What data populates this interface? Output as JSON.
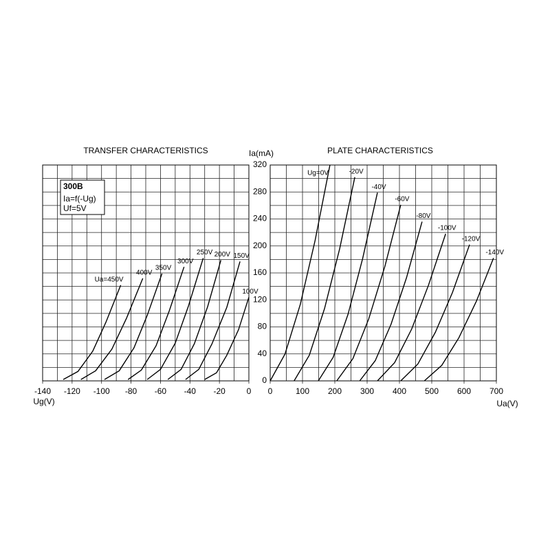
{
  "chart_data": [
    {
      "type": "line",
      "title": "TRANSFER CHARACTERISTICS",
      "x_label": "Ug(V)",
      "annotations": [
        "300B",
        "Ia=f(-Ug)",
        "Uf=5V"
      ],
      "xlim": [
        -140,
        0
      ],
      "ylim": [
        0,
        320
      ],
      "xticks": [
        -140,
        -120,
        -100,
        -80,
        -60,
        -40,
        -20,
        0
      ],
      "xgrid": [
        -140,
        -130,
        -120,
        -110,
        -100,
        -90,
        -80,
        -70,
        -60,
        -50,
        -40,
        -30,
        -20,
        -10,
        0
      ],
      "ygrid": [
        0,
        20,
        40,
        60,
        80,
        100,
        120,
        140,
        160,
        180,
        200,
        220,
        240,
        260,
        280,
        300,
        320
      ],
      "grid": true,
      "series": [
        {
          "name": "Ua=450V",
          "color": "#000000",
          "x": [
            -126,
            -116,
            -106,
            -97,
            -87
          ],
          "values": [
            2,
            14,
            44,
            87,
            142
          ]
        },
        {
          "name": "400V",
          "color": "#000000",
          "x": [
            -114,
            -104,
            -93,
            -83,
            -72
          ],
          "values": [
            2,
            15,
            47,
            93,
            152
          ]
        },
        {
          "name": "350V",
          "color": "#000000",
          "x": [
            -98,
            -88,
            -78,
            -69,
            -59
          ],
          "values": [
            2,
            15,
            49,
            97,
            159
          ]
        },
        {
          "name": "300V",
          "color": "#000000",
          "x": [
            -82,
            -73,
            -63,
            -54,
            -44
          ],
          "values": [
            2,
            16,
            52,
            104,
            169
          ]
        },
        {
          "name": "250V",
          "color": "#000000",
          "x": [
            -69,
            -60,
            -50,
            -41,
            -31
          ],
          "values": [
            2,
            17,
            56,
            111,
            182
          ]
        },
        {
          "name": "200V",
          "color": "#000000",
          "x": [
            -55,
            -46,
            -37,
            -28,
            -19
          ],
          "values": [
            2,
            17,
            55,
            110,
            179
          ]
        },
        {
          "name": "150V",
          "color": "#000000",
          "x": [
            -43,
            -34,
            -25,
            -15,
            -6
          ],
          "values": [
            2,
            17,
            55,
            109,
            177
          ]
        },
        {
          "name": "100V",
          "color": "#000000",
          "x": [
            -30,
            -22,
            -15,
            -7,
            0
          ],
          "values": [
            2,
            12,
            38,
            76,
            124
          ]
        }
      ]
    },
    {
      "type": "line",
      "title": "PLATE CHARACTERISTICS",
      "x_label": "Ua(V)",
      "y_label": "Ia(mA)",
      "xlim": [
        0,
        700
      ],
      "ylim": [
        0,
        320
      ],
      "xticks": [
        0,
        100,
        200,
        300,
        400,
        500,
        600,
        700
      ],
      "yticks": [
        0,
        40,
        80,
        120,
        160,
        200,
        240,
        280,
        320
      ],
      "xgrid": [
        0,
        50,
        100,
        150,
        200,
        250,
        300,
        350,
        400,
        450,
        500,
        550,
        600,
        650,
        700
      ],
      "ygrid": [
        0,
        20,
        40,
        60,
        80,
        100,
        120,
        140,
        160,
        180,
        200,
        220,
        240,
        260,
        280,
        300,
        320
      ],
      "grid": true,
      "series": [
        {
          "name": "Ug=0V",
          "color": "#000000",
          "x": [
            0,
            46,
            93,
            139,
            185
          ],
          "values": [
            0,
            40,
            113,
            208,
            320
          ]
        },
        {
          "name": "-20V",
          "color": "#000000",
          "x": [
            74,
            121,
            168,
            215,
            262
          ],
          "values": [
            0,
            38,
            107,
            196,
            302
          ]
        },
        {
          "name": "-40V",
          "color": "#000000",
          "x": [
            149,
            195,
            241,
            286,
            332
          ],
          "values": [
            0,
            35,
            99,
            181,
            279
          ]
        },
        {
          "name": "-60V",
          "color": "#000000",
          "x": [
            206,
            256,
            305,
            355,
            404
          ],
          "values": [
            0,
            33,
            92,
            170,
            261
          ]
        },
        {
          "name": "-80V",
          "color": "#000000",
          "x": [
            277,
            325,
            374,
            422,
            470
          ],
          "values": [
            0,
            30,
            84,
            153,
            236
          ]
        },
        {
          "name": "-100V",
          "color": "#000000",
          "x": [
            332,
            385,
            438,
            490,
            543
          ],
          "values": [
            0,
            27,
            77,
            142,
            218
          ]
        },
        {
          "name": "-120V",
          "color": "#000000",
          "x": [
            404,
            457,
            511,
            564,
            617
          ],
          "values": [
            0,
            25,
            72,
            131,
            202
          ]
        },
        {
          "name": "-140V",
          "color": "#000000",
          "x": [
            477,
            531,
            584,
            638,
            691
          ],
          "values": [
            0,
            23,
            64,
            118,
            182
          ]
        }
      ]
    }
  ]
}
